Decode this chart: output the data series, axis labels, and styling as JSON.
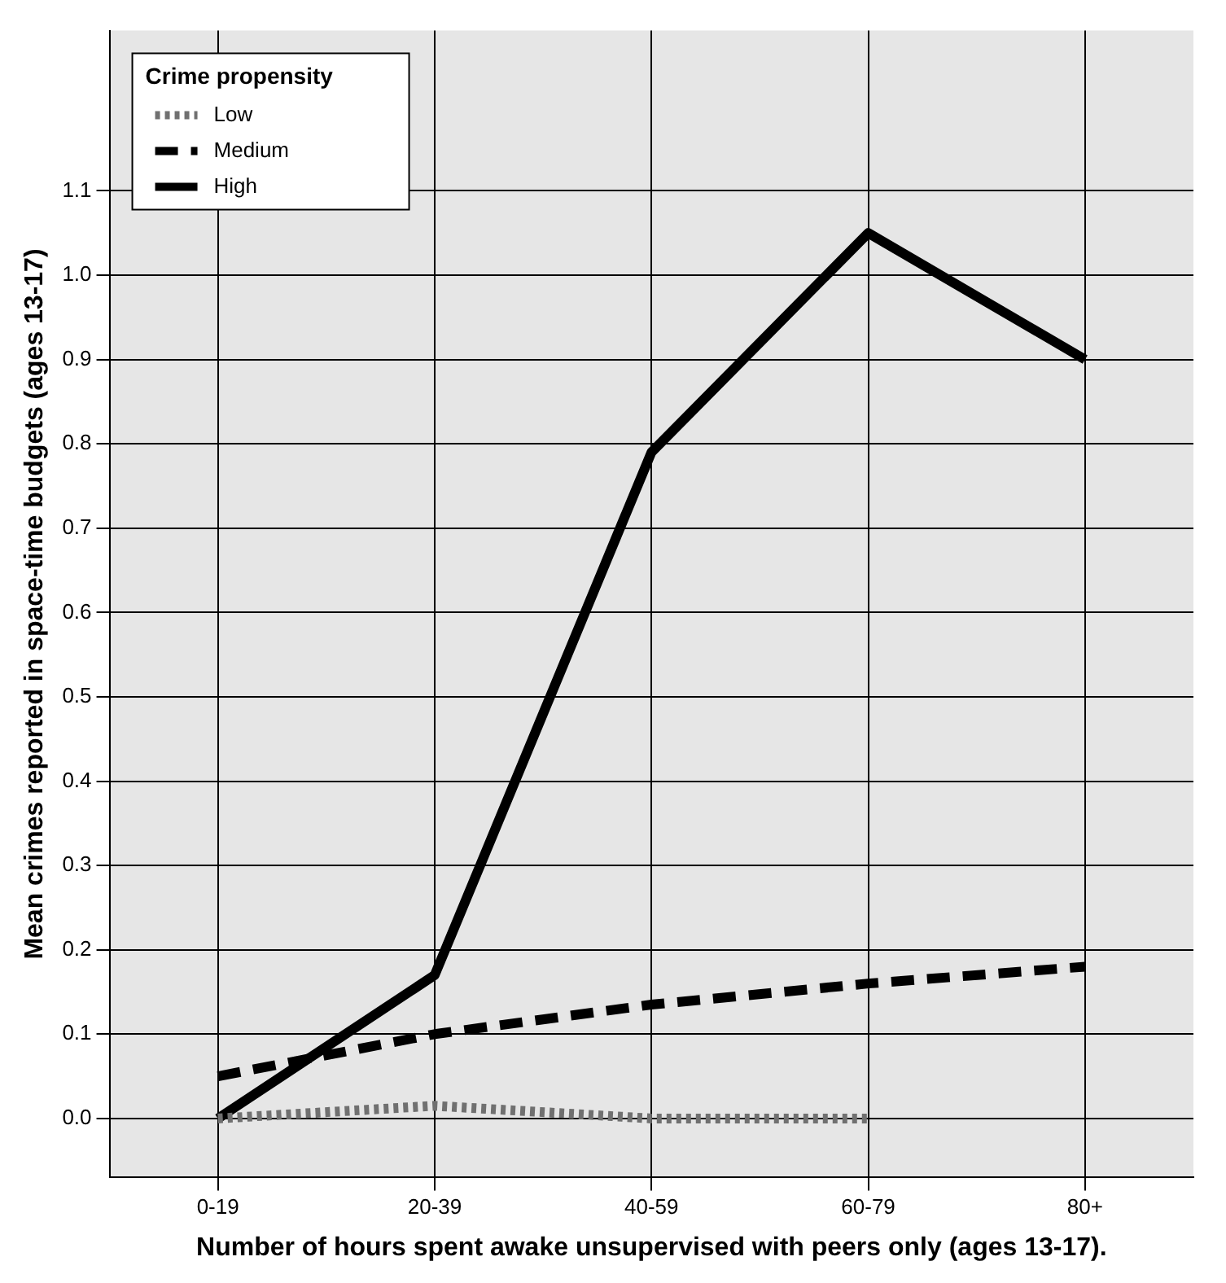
{
  "chart_data": {
    "type": "line",
    "xlabel": "Number of hours spent awake unsupervised with peers only (ages 13-17).",
    "ylabel": "Mean crimes reported in space-time budgets (ages 13-17)",
    "legend_title": "Crime propensity",
    "legend": "top left",
    "grid": true,
    "marker": "none",
    "categories": [
      "0-19",
      "20-39",
      "40-59",
      "60-79",
      "80+"
    ],
    "ylim": [
      -0.07,
      1.29
    ],
    "yticks": [
      {
        "value": 0,
        "label": "0.0"
      },
      {
        "value": 0.1,
        "label": "0.1"
      },
      {
        "value": 0.2,
        "label": "0.2"
      },
      {
        "value": 0.3,
        "label": "0.3"
      },
      {
        "value": 0.4,
        "label": "0.4"
      },
      {
        "value": 0.5,
        "label": "0.5"
      },
      {
        "value": 0.6,
        "label": "0.6"
      },
      {
        "value": 0.7,
        "label": "0.7"
      },
      {
        "value": 0.8,
        "label": "0.8"
      },
      {
        "value": 0.9,
        "label": "0.9"
      },
      {
        "value": 1,
        "label": "1.0"
      },
      {
        "value": 1.1,
        "label": "1.1"
      }
    ],
    "series": [
      {
        "name": "Low",
        "color": "#707070",
        "line_style": "dotted",
        "values": [
          0.0,
          0.015,
          0.0,
          0.0,
          null
        ]
      },
      {
        "name": "Medium",
        "color": "#000000",
        "line_style": "dashed",
        "values": [
          0.05,
          0.1,
          0.135,
          0.16,
          0.18
        ]
      },
      {
        "name": "High",
        "color": "#000000",
        "line_style": "solid",
        "values": [
          0.0,
          0.17,
          0.79,
          1.05,
          0.9
        ]
      }
    ]
  }
}
